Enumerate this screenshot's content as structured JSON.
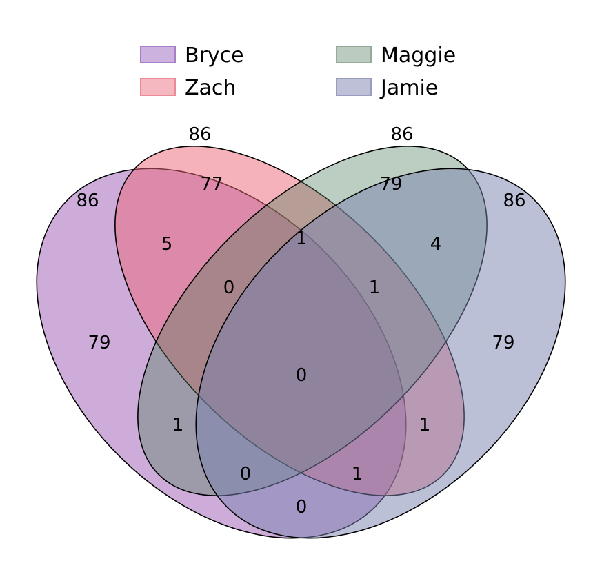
{
  "sets": [
    {
      "key": "bryce",
      "name": "Bryce",
      "size": "86",
      "fill": "#9b59b6",
      "fill_opacity": 0.5,
      "legend_fill": "#cbb2df",
      "legend_stroke": "#a87ec9"
    },
    {
      "key": "zach",
      "name": "Zach",
      "size": "86",
      "fill": "#ee6677",
      "fill_opacity": 0.5,
      "legend_fill": "#f5b8c0",
      "legend_stroke": "#ec8b97"
    },
    {
      "key": "maggie",
      "name": "Maggie",
      "size": "86",
      "fill": "#4e7f5d",
      "fill_opacity": 0.38,
      "legend_fill": "#bccbbf",
      "legend_stroke": "#93ab98"
    },
    {
      "key": "jamie",
      "name": "Jamie",
      "size": "86",
      "fill": "#7a82b0",
      "fill_opacity": 0.5,
      "legend_fill": "#bdc0d6",
      "legend_stroke": "#979cc0"
    }
  ],
  "regions": {
    "bryce_only": "79",
    "zach_only": "77",
    "maggie_only": "79",
    "jamie_only": "79",
    "bryce_zach": "5",
    "zach_maggie": "1",
    "maggie_jamie": "4",
    "bryce_jamie": "0",
    "bryce_zach_maggie": "0",
    "zach_maggie_jamie": "1",
    "all_four": "0",
    "bryce_maggie": "1",
    "zach_jamie": "1",
    "bryce_maggie_jamie": "0",
    "bryce_zach_jamie": "1"
  }
}
